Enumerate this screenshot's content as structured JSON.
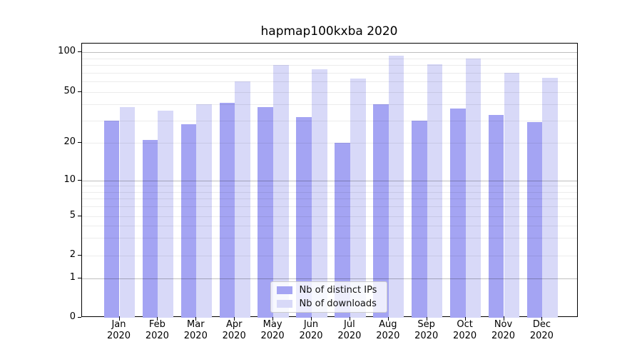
{
  "chart_data": {
    "type": "bar",
    "title": "hapmap100kxba 2020",
    "categories": [
      "Jan 2020",
      "Feb 2020",
      "Mar 2020",
      "Apr 2020",
      "May 2020",
      "Jun 2020",
      "Jul 2020",
      "Aug 2020",
      "Sep 2020",
      "Oct 2020",
      "Nov 2020",
      "Dec 2020"
    ],
    "months": [
      "Jan",
      "Feb",
      "Mar",
      "Apr",
      "May",
      "Jun",
      "Jul",
      "Aug",
      "Sep",
      "Oct",
      "Nov",
      "Dec"
    ],
    "year": "2020",
    "series": [
      {
        "name": "Nb of distinct IPs",
        "color": "#a4a4f3",
        "values": [
          30,
          21,
          28,
          41,
          38,
          32,
          20,
          40,
          30,
          37,
          33,
          29
        ]
      },
      {
        "name": "Nb of downloads",
        "color": "#d8d9f8",
        "values": [
          38,
          36,
          40,
          60,
          80,
          74,
          63,
          94,
          81,
          89,
          70,
          64
        ]
      }
    ],
    "y_axis": {
      "ticks": [
        100,
        50,
        20,
        10,
        5,
        2,
        1,
        0
      ],
      "scale": "log-like with 0 baseline"
    },
    "grid": true,
    "legend_position": "lower center",
    "colors": {
      "background": "#ffffff",
      "spine": "#000000"
    }
  }
}
